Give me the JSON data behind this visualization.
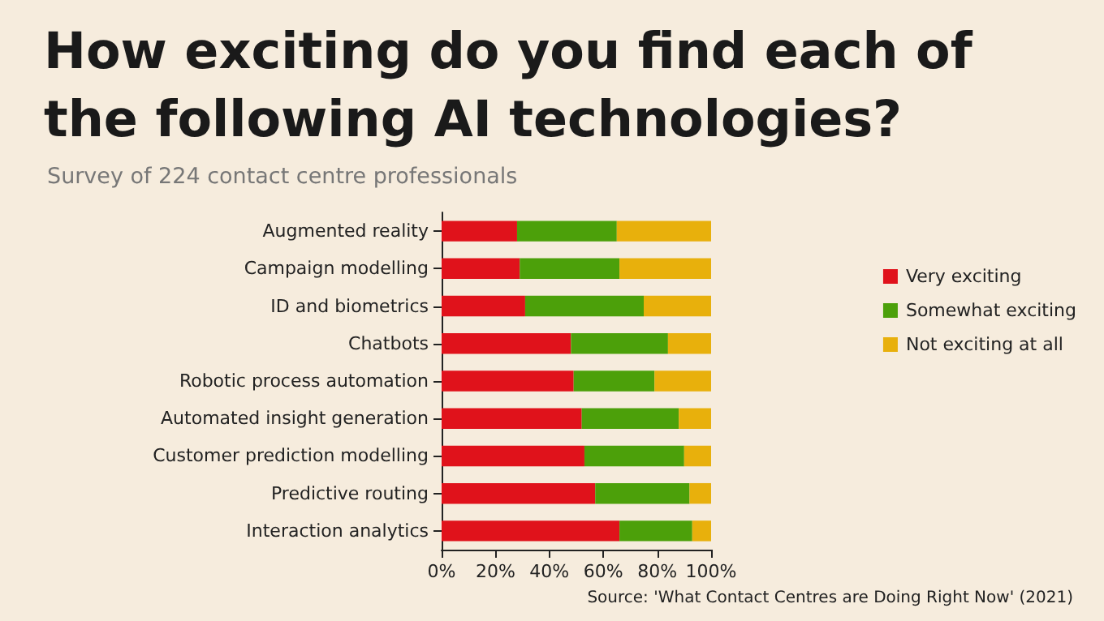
{
  "chart_data": {
    "type": "bar",
    "orientation": "horizontal",
    "stacked": true,
    "title": "How exciting do you find each of the following AI technologies?",
    "subtitle": "Survey of 224 contact centre professionals",
    "categories": [
      "Augmented reality",
      "Campaign modelling",
      "ID and biometrics",
      "Chatbots",
      "Robotic process automation",
      "Automated insight generation",
      "Customer prediction modelling",
      "Predictive routing",
      "Interaction analytics"
    ],
    "series": [
      {
        "name": "Very exciting",
        "color": "#e0121b",
        "values": [
          28,
          29,
          31,
          48,
          49,
          52,
          53,
          57,
          66
        ]
      },
      {
        "name": "Somewhat exciting",
        "color": "#4ca00a",
        "values": [
          37,
          37,
          44,
          36,
          30,
          36,
          37,
          35,
          27
        ]
      },
      {
        "name": "Not exciting at all",
        "color": "#e8b00c",
        "values": [
          35,
          34,
          25,
          16,
          21,
          12,
          10,
          8,
          7
        ]
      }
    ],
    "xlim": [
      0,
      100
    ],
    "xticks": [
      {
        "value": 0,
        "label": "0%"
      },
      {
        "value": 20,
        "label": "20%"
      },
      {
        "value": 40,
        "label": "40%"
      },
      {
        "value": 60,
        "label": "60%"
      },
      {
        "value": 80,
        "label": "80%"
      },
      {
        "value": 100,
        "label": "100%"
      }
    ],
    "grid": false,
    "legend": "right",
    "annotations": [
      "Source: 'What Contact Centres are Doing Right Now' (2021)"
    ]
  }
}
